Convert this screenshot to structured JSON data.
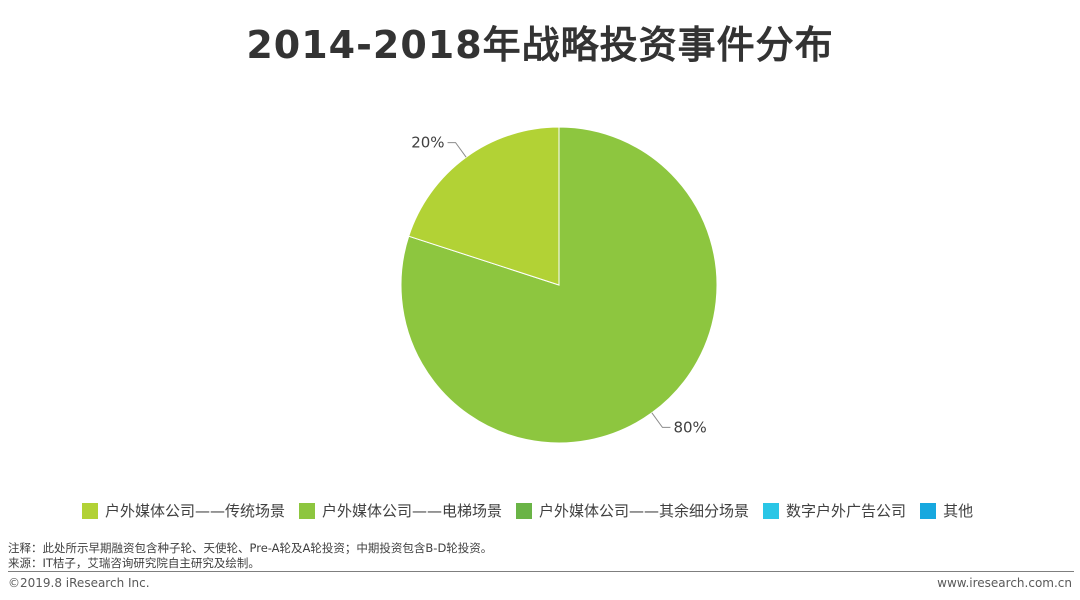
{
  "title": "2014-2018年战略投资事件分布",
  "chart_data": {
    "type": "pie",
    "title": "2014-2018年战略投资事件分布",
    "start_angle_deg": 0,
    "direction": "clockwise",
    "slices": [
      {
        "label": "户外媒体公司——电梯场景",
        "value": 80,
        "display": "80%",
        "color": "#8DC63F"
      },
      {
        "label": "户外媒体公司——传统场景",
        "value": 20,
        "display": "20%",
        "color": "#B2D235"
      }
    ],
    "legend": [
      {
        "label": "户外媒体公司——传统场景",
        "color": "#B2D235"
      },
      {
        "label": "户外媒体公司——电梯场景",
        "color": "#8DC63F"
      },
      {
        "label": "户外媒体公司——其余细分场景",
        "color": "#6AB446"
      },
      {
        "label": "数字户外广告公司",
        "color": "#2AC6E6"
      },
      {
        "label": "其他",
        "color": "#17A8DF"
      }
    ],
    "legend_position": "bottom"
  },
  "footer": {
    "note": "注释：此处所示早期融资包含种子轮、天使轮、Pre-A轮及A轮投资；中期投资包含B-D轮投资。",
    "source": "来源：IT桔子，艾瑞咨询研究院自主研究及绘制。",
    "copyright": "©2019.8 iResearch Inc.",
    "site": "www.iresearch.com.cn"
  }
}
